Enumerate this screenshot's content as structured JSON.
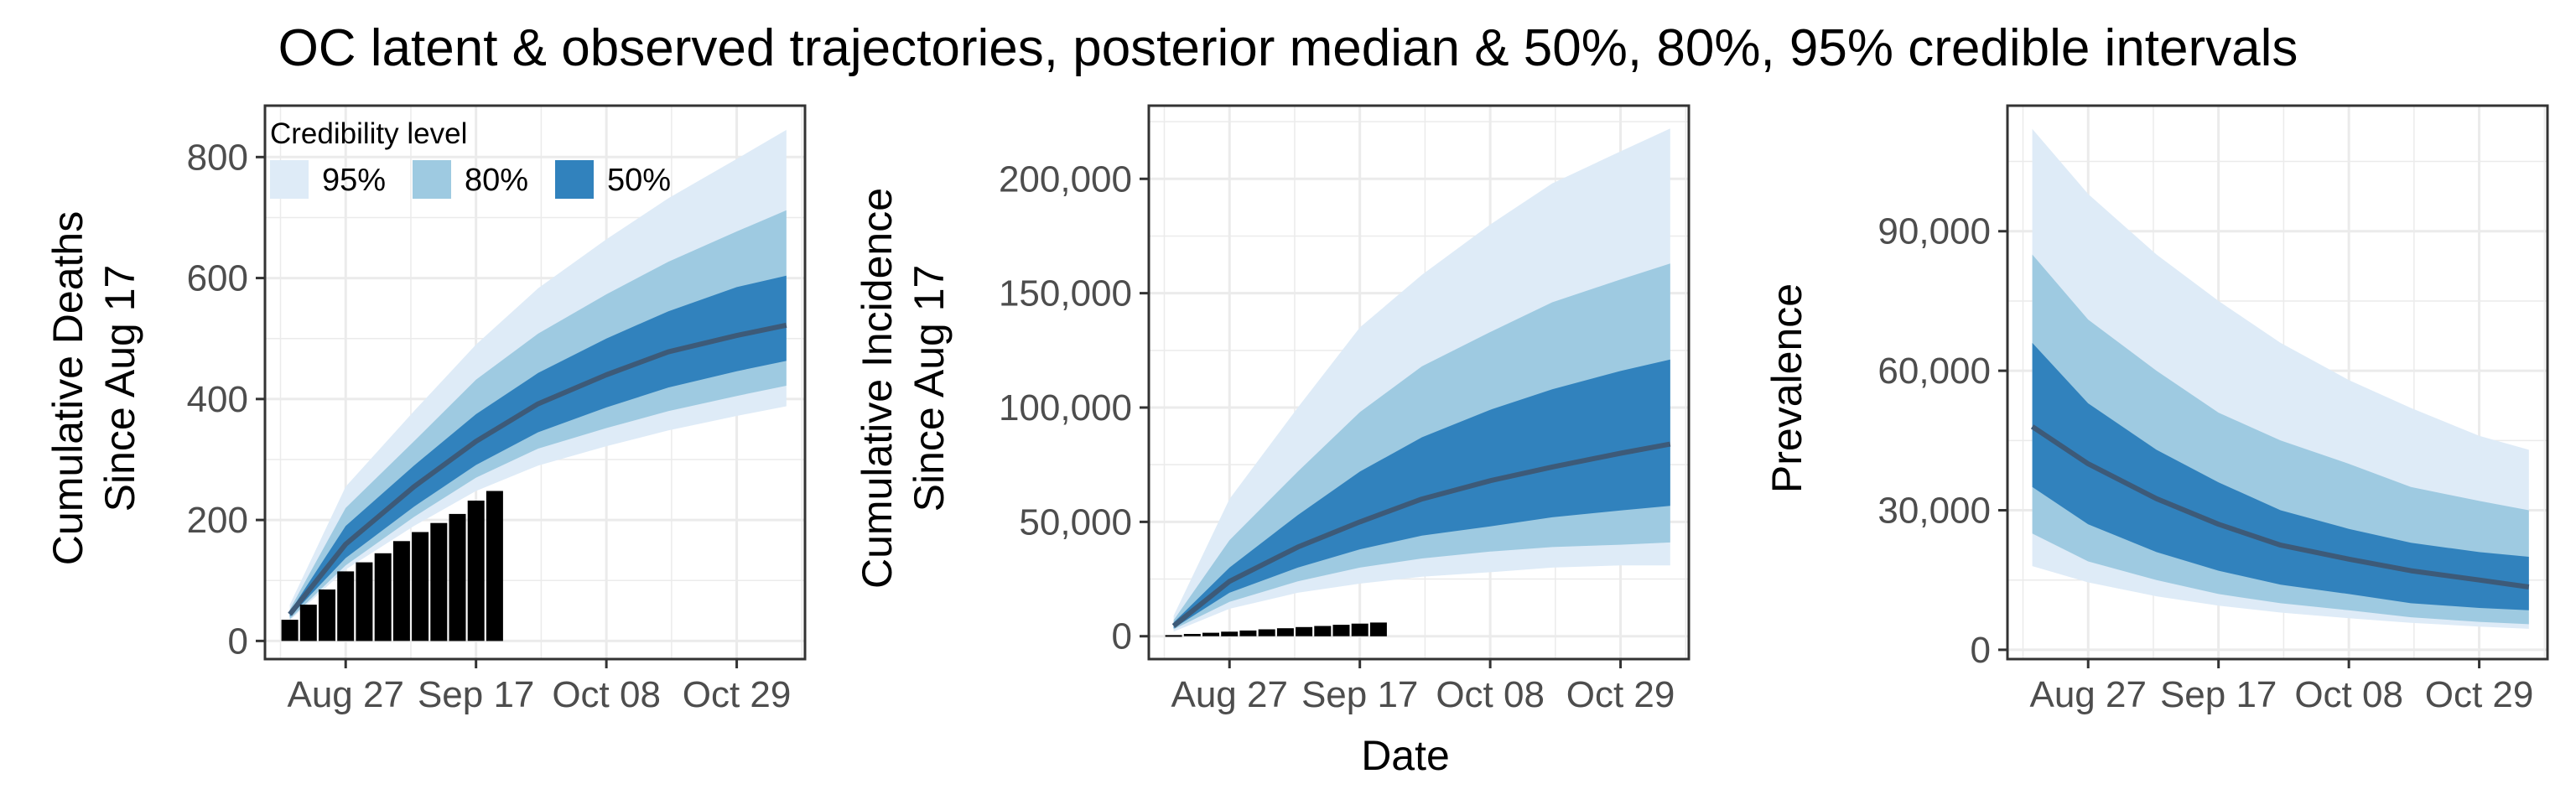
{
  "figure": {
    "title": "OC latent & observed trajectories, posterior median & 50%, 80%, 95% credible intervals"
  },
  "legend": {
    "title": "Credibility level",
    "items": [
      {
        "label": "95%",
        "color": "#deebf7"
      },
      {
        "label": "80%",
        "color": "#9ecae1"
      },
      {
        "label": "50%",
        "color": "#3182bd"
      }
    ]
  },
  "colors": {
    "ci95": "#deebf7",
    "ci80": "#9ecae1",
    "ci50": "#3182bd",
    "median": "#3d5a78",
    "observed": "#000000",
    "grid": "#ebebeb",
    "border": "#333333"
  },
  "chart_data": [
    {
      "type": "area",
      "title": "",
      "ylabel": [
        "Cumulative Deaths",
        "Since Aug 17"
      ],
      "xlabel": "",
      "xlim": [
        "2020-08-14",
        "2020-11-09"
      ],
      "ylim": [
        -30,
        885
      ],
      "x_ticks": [
        {
          "date": "2020-08-27",
          "label": "Aug 27"
        },
        {
          "date": "2020-09-17",
          "label": "Sep 17"
        },
        {
          "date": "2020-10-08",
          "label": "Oct 08"
        },
        {
          "date": "2020-10-29",
          "label": "Oct 29"
        }
      ],
      "y_ticks": [
        {
          "value": 0,
          "label": "0"
        },
        {
          "value": 200,
          "label": "200"
        },
        {
          "value": 400,
          "label": "400"
        },
        {
          "value": 600,
          "label": "600"
        },
        {
          "value": 800,
          "label": "800"
        }
      ],
      "grid": true,
      "legend": "top-left",
      "x": [
        "2020-08-18",
        "2020-08-27",
        "2020-09-07",
        "2020-09-17",
        "2020-09-27",
        "2020-10-08",
        "2020-10-18",
        "2020-10-29",
        "2020-11-06"
      ],
      "series": [
        {
          "band": "95%",
          "lower": [
            34,
            118,
            190,
            248,
            290,
            322,
            348,
            372,
            388
          ],
          "upper": [
            60,
            255,
            380,
            490,
            583,
            664,
            732,
            797,
            845
          ]
        },
        {
          "band": "80%",
          "lower": [
            36,
            125,
            205,
            270,
            318,
            352,
            380,
            405,
            422
          ],
          "upper": [
            52,
            220,
            330,
            432,
            508,
            573,
            627,
            677,
            712
          ]
        },
        {
          "band": "50%",
          "lower": [
            40,
            137,
            222,
            291,
            345,
            386,
            419,
            446,
            463
          ],
          "upper": [
            48,
            190,
            290,
            375,
            443,
            500,
            545,
            585,
            604
          ]
        },
        {
          "name": "median",
          "values": [
            44,
            160,
            255,
            330,
            392,
            440,
            478,
            505,
            522
          ]
        }
      ],
      "observed": {
        "x": [
          "2020-08-18",
          "2020-08-21",
          "2020-08-24",
          "2020-08-27",
          "2020-08-30",
          "2020-09-02",
          "2020-09-05",
          "2020-09-08",
          "2020-09-11",
          "2020-09-14",
          "2020-09-17",
          "2020-09-20"
        ],
        "values": [
          35,
          60,
          85,
          115,
          130,
          145,
          165,
          180,
          195,
          210,
          232,
          248
        ]
      }
    },
    {
      "type": "area",
      "title": "",
      "ylabel": [
        "Cumulative Incidence",
        "Since Aug 17"
      ],
      "xlabel": "Date",
      "xlim": [
        "2020-08-14",
        "2020-11-09"
      ],
      "ylim": [
        -10000,
        232000
      ],
      "x_ticks": [
        {
          "date": "2020-08-27",
          "label": "Aug 27"
        },
        {
          "date": "2020-09-17",
          "label": "Sep 17"
        },
        {
          "date": "2020-10-08",
          "label": "Oct 08"
        },
        {
          "date": "2020-10-29",
          "label": "Oct 29"
        }
      ],
      "y_ticks": [
        {
          "value": 0,
          "label": "0"
        },
        {
          "value": 50000,
          "label": "50,000"
        },
        {
          "value": 100000,
          "label": "100,000"
        },
        {
          "value": 150000,
          "label": "150,000"
        },
        {
          "value": 200000,
          "label": "200,000"
        }
      ],
      "grid": true,
      "x": [
        "2020-08-18",
        "2020-08-27",
        "2020-09-07",
        "2020-09-17",
        "2020-09-27",
        "2020-10-08",
        "2020-10-18",
        "2020-10-29",
        "2020-11-06"
      ],
      "series": [
        {
          "band": "95%",
          "lower": [
            2000,
            12000,
            19000,
            23000,
            26000,
            28000,
            30000,
            31000,
            31000
          ],
          "upper": [
            9000,
            60000,
            100000,
            135000,
            158000,
            180000,
            198000,
            212000,
            222000
          ]
        },
        {
          "band": "80%",
          "lower": [
            3000,
            15000,
            24000,
            30000,
            34000,
            37000,
            39000,
            40000,
            41000
          ],
          "upper": [
            7000,
            42000,
            72000,
            98000,
            118000,
            133000,
            146000,
            156000,
            163000
          ]
        },
        {
          "band": "50%",
          "lower": [
            3500,
            19000,
            30000,
            38000,
            44000,
            48000,
            52000,
            55000,
            57000
          ],
          "upper": [
            6000,
            30000,
            53000,
            72000,
            87000,
            99000,
            108000,
            116000,
            121000
          ]
        },
        {
          "name": "median",
          "values": [
            4500,
            24000,
            39000,
            50000,
            60000,
            68000,
            74000,
            80000,
            84000
          ]
        }
      ],
      "observed": {
        "x": [
          "2020-08-18",
          "2020-08-21",
          "2020-08-24",
          "2020-08-27",
          "2020-08-30",
          "2020-09-02",
          "2020-09-05",
          "2020-09-08",
          "2020-09-11",
          "2020-09-14",
          "2020-09-17",
          "2020-09-20"
        ],
        "values": [
          500,
          1000,
          1500,
          2000,
          2500,
          3000,
          3500,
          4000,
          4500,
          5000,
          5500,
          6000
        ]
      }
    },
    {
      "type": "area",
      "title": "",
      "ylabel": [
        "Prevalence"
      ],
      "xlabel": "",
      "xlim": [
        "2020-08-14",
        "2020-11-09"
      ],
      "ylim": [
        -2000,
        117000
      ],
      "x_ticks": [
        {
          "date": "2020-08-27",
          "label": "Aug 27"
        },
        {
          "date": "2020-09-17",
          "label": "Sep 17"
        },
        {
          "date": "2020-10-08",
          "label": "Oct 08"
        },
        {
          "date": "2020-10-29",
          "label": "Oct 29"
        }
      ],
      "y_ticks": [
        {
          "value": 0,
          "label": "0"
        },
        {
          "value": 30000,
          "label": "30,000"
        },
        {
          "value": 60000,
          "label": "60,000"
        },
        {
          "value": 90000,
          "label": "90,000"
        }
      ],
      "grid": true,
      "x": [
        "2020-08-18",
        "2020-08-27",
        "2020-09-07",
        "2020-09-17",
        "2020-09-27",
        "2020-10-08",
        "2020-10-18",
        "2020-10-29",
        "2020-11-06"
      ],
      "series": [
        {
          "band": "95%",
          "lower": [
            18000,
            14500,
            11500,
            9500,
            8000,
            6800,
            5800,
            5000,
            4500
          ],
          "upper": [
            112000,
            98000,
            85000,
            75000,
            66000,
            58000,
            52000,
            46000,
            43000
          ]
        },
        {
          "band": "80%",
          "lower": [
            25000,
            19000,
            15000,
            12000,
            10000,
            8500,
            7000,
            6000,
            5500
          ],
          "upper": [
            85000,
            71000,
            60000,
            51000,
            45000,
            40000,
            35000,
            32000,
            30000
          ]
        },
        {
          "band": "50%",
          "lower": [
            35000,
            27000,
            21000,
            17000,
            14000,
            12000,
            10000,
            9000,
            8500
          ],
          "upper": [
            66000,
            53000,
            43000,
            36000,
            30000,
            26000,
            23000,
            21000,
            20000
          ]
        },
        {
          "name": "median",
          "values": [
            48000,
            40000,
            32500,
            27000,
            22500,
            19500,
            17000,
            15000,
            13500
          ]
        }
      ]
    }
  ]
}
